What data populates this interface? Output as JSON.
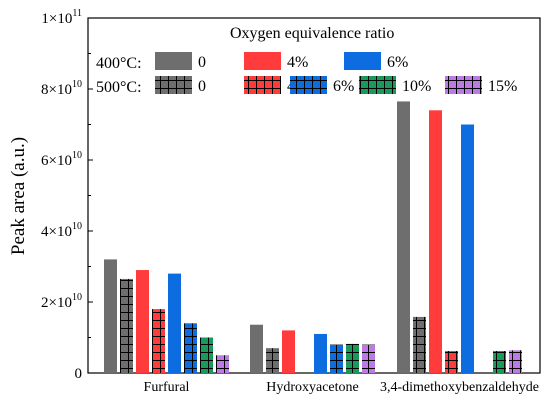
{
  "chart_data": {
    "type": "bar",
    "ylabel": "Peak area (a.u.)",
    "ylim": [
      0,
      100000000000
    ],
    "y_ticks": [
      {
        "value": 0,
        "mant": "0",
        "exp": ""
      },
      {
        "value": 20000000000,
        "mant": "2×10",
        "exp": "10"
      },
      {
        "value": 40000000000,
        "mant": "4×10",
        "exp": "10"
      },
      {
        "value": 60000000000,
        "mant": "6×10",
        "exp": "10"
      },
      {
        "value": 80000000000,
        "mant": "8×10",
        "exp": "10"
      },
      {
        "value": 100000000000,
        "mant": "1×10",
        "exp": "11"
      }
    ],
    "categories": [
      "Furfural",
      "Hydroxyacetone",
      "3,4-dimethoxybenzaldehyde"
    ],
    "legend": {
      "title": "Oxygen equivalence ratio",
      "row1_label": "400°C:",
      "row2_label": "500°C:",
      "placement": "top"
    },
    "series": [
      {
        "name": "0",
        "temp": "400°C",
        "color": "#6e6e6e",
        "hatch": false,
        "values": [
          32000000000,
          13600000000,
          76500000000
        ]
      },
      {
        "name": "0",
        "temp": "500°C",
        "color": "#6e6e6e",
        "hatch": true,
        "values": [
          26500000000,
          7000000000,
          15800000000
        ]
      },
      {
        "name": "4%",
        "temp": "400°C",
        "color": "#ff3b3b",
        "hatch": false,
        "values": [
          29000000000,
          12000000000,
          74000000000
        ]
      },
      {
        "name": "4%",
        "temp": "500°C",
        "color": "#ff3b3b",
        "hatch": true,
        "values": [
          18000000000,
          null,
          6200000000
        ]
      },
      {
        "name": "6%",
        "temp": "400°C",
        "color": "#0c6ce0",
        "hatch": false,
        "values": [
          28000000000,
          11000000000,
          70000000000
        ]
      },
      {
        "name": "6%",
        "temp": "500°C",
        "color": "#0c6ce0",
        "hatch": true,
        "values": [
          14000000000,
          8000000000,
          null
        ]
      },
      {
        "name": "10%",
        "temp": "500°C",
        "color": "#1a9a5a",
        "hatch": true,
        "values": [
          10000000000,
          8200000000,
          6200000000
        ]
      },
      {
        "name": "15%",
        "temp": "500°C",
        "color": "#bd79e6",
        "hatch": true,
        "values": [
          5000000000,
          8000000000,
          6400000000
        ]
      }
    ]
  }
}
